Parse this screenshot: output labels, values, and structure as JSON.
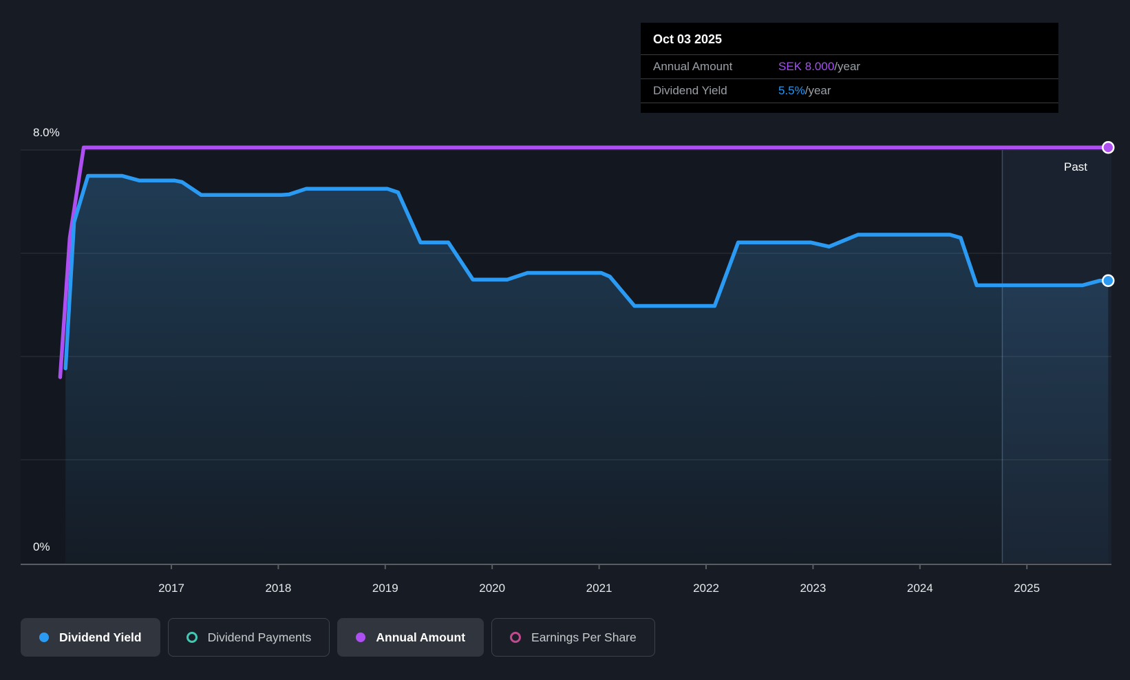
{
  "tooltip": {
    "date": "Oct 03 2025",
    "rows": [
      {
        "id": "annual-amount",
        "label": "Annual Amount",
        "value": "SEK 8.000",
        "suffix": "/year",
        "value_color": "#a64ef5"
      },
      {
        "id": "dividend-yield",
        "label": "Dividend Yield",
        "value": "5.5%",
        "suffix": "/year",
        "value_color": "#2196f3"
      }
    ]
  },
  "axis": {
    "y_top_label": "8.0%",
    "y_bottom_label": "0%",
    "x_tick_labels": [
      "2017",
      "2018",
      "2019",
      "2020",
      "2021",
      "2022",
      "2023",
      "2024",
      "2025"
    ]
  },
  "past_label": "Past",
  "legend": [
    {
      "label": "Dividend Yield",
      "marker": "filled",
      "color": "#2b9af3",
      "active": true
    },
    {
      "label": "Dividend Payments",
      "marker": "ring",
      "color": "#41c9b4",
      "active": false
    },
    {
      "label": "Annual Amount",
      "marker": "filled",
      "color": "#ae4ff2",
      "active": true
    },
    {
      "label": "Earnings Per Share",
      "marker": "ring",
      "color": "#c1498f",
      "active": false
    }
  ],
  "colors": {
    "background": "#161b24",
    "gridline": "rgba(255,255,255,0.08)",
    "axis_line": "#585d64",
    "area_fill_top": "rgba(62,148,214,0.30)",
    "area_fill_bottom": "rgba(62,148,214,0.03)",
    "past_overlay": "rgba(120,175,235,0.07)",
    "past_divider": "rgba(170,200,235,0.28)",
    "marker_stroke": "#ffffff"
  },
  "chart_data": {
    "type": "area",
    "title": "Dividend history (dividend yield and annual amount over time)",
    "x_unit": "year",
    "xlim": [
      2015.95,
      2025.81
    ],
    "ylim": [
      0,
      8.0
    ],
    "grid_values": [
      2,
      4,
      6,
      8
    ],
    "x_tick_years": [
      2017,
      2018,
      2019,
      2020,
      2021,
      2022,
      2023,
      2024,
      2025
    ],
    "past_divider_x": 2024.77,
    "legend_position": "bottom",
    "series": [
      {
        "name": "Dividend Yield",
        "color": "#2b9af3",
        "current_value": "5.5%/year",
        "filled_area": true,
        "end_marker": true,
        "points": [
          [
            2016.01,
            3.77
          ],
          [
            2016.09,
            6.6
          ],
          [
            2016.22,
            7.5
          ],
          [
            2016.54,
            7.5
          ],
          [
            2016.7,
            7.41
          ],
          [
            2017.03,
            7.41
          ],
          [
            2017.1,
            7.38
          ],
          [
            2017.28,
            7.13
          ],
          [
            2018.03,
            7.13
          ],
          [
            2018.1,
            7.14
          ],
          [
            2018.26,
            7.25
          ],
          [
            2019.02,
            7.25
          ],
          [
            2019.12,
            7.18
          ],
          [
            2019.33,
            6.21
          ],
          [
            2019.59,
            6.21
          ],
          [
            2019.82,
            5.49
          ],
          [
            2020.14,
            5.49
          ],
          [
            2020.33,
            5.62
          ],
          [
            2021.02,
            5.62
          ],
          [
            2021.1,
            5.55
          ],
          [
            2021.33,
            4.98
          ],
          [
            2022.08,
            4.98
          ],
          [
            2022.3,
            6.21
          ],
          [
            2022.98,
            6.21
          ],
          [
            2023.15,
            6.13
          ],
          [
            2023.42,
            6.36
          ],
          [
            2024.28,
            6.36
          ],
          [
            2024.38,
            6.3
          ],
          [
            2024.53,
            5.38
          ],
          [
            2025.52,
            5.38
          ],
          [
            2025.68,
            5.47
          ],
          [
            2025.76,
            5.47
          ]
        ]
      },
      {
        "name": "Annual Amount",
        "color": "#ae4ff2",
        "current_value": "SEK 8.000/year",
        "filled_area": false,
        "end_marker": true,
        "points": [
          [
            2015.96,
            3.6
          ],
          [
            2016.05,
            6.3
          ],
          [
            2016.18,
            8.05
          ],
          [
            2025.76,
            8.05
          ]
        ]
      }
    ]
  }
}
